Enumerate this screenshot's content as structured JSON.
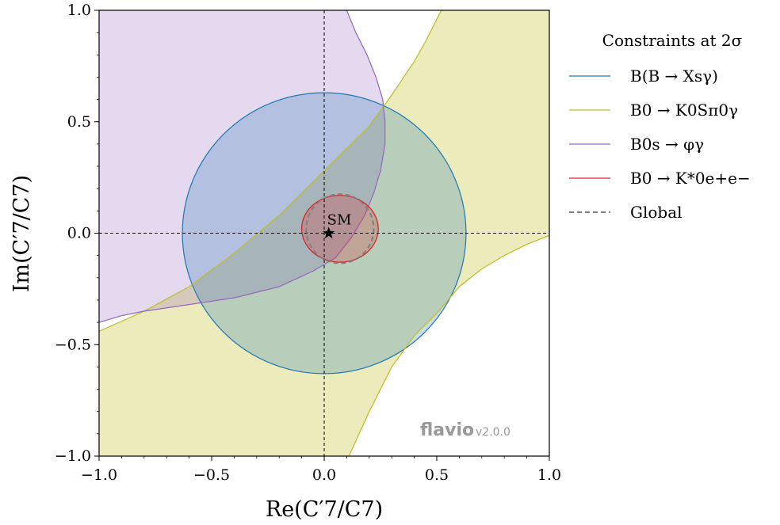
{
  "chart_data": {
    "type": "contour",
    "xlabel": "Re(C′7/C7)",
    "ylabel": "Im(C′7/C7)",
    "xlim": [
      -1.0,
      1.0
    ],
    "ylim": [
      -1.0,
      1.0
    ],
    "xticks": [
      "−1.0",
      "−0.5",
      "0.0",
      "0.5",
      "1.0"
    ],
    "yticks": [
      "−1.0",
      "−0.5",
      "0.0",
      "0.5",
      "1.0"
    ],
    "xtick_values": [
      -1.0,
      -0.5,
      0.0,
      0.5,
      1.0
    ],
    "ytick_values": [
      -1.0,
      -0.5,
      0.0,
      0.5,
      1.0
    ],
    "grid": false,
    "reference_lines": {
      "x": 0.0,
      "y": 0.0,
      "style": "dashed"
    },
    "legend": {
      "title": "Constraints at 2σ",
      "placement": "right-outside-top",
      "entries": [
        {
          "label": "B(B → Xsγ)",
          "color": "#1f77b4",
          "style": "solid"
        },
        {
          "label": "B0 → K0Sπ0γ",
          "color": "#bcbd22",
          "style": "solid"
        },
        {
          "label": "B0s → φγ",
          "color": "#9467bd",
          "style": "solid"
        },
        {
          "label": "B0 → K*0e+e−",
          "color": "#d62728",
          "style": "solid"
        },
        {
          "label": "Global",
          "color": "#7f7f7f",
          "style": "dashed"
        }
      ]
    },
    "regions": {
      "bxsgamma": {
        "shape": "disk",
        "center": [
          0.0,
          0.0
        ],
        "radius": 0.63,
        "color": "#1f77b4"
      },
      "k0spi0gamma_boundary_upper": [
        [
          -1.0,
          -0.44
        ],
        [
          -0.8,
          -0.35
        ],
        [
          -0.6,
          -0.24
        ],
        [
          -0.4,
          -0.09
        ],
        [
          -0.2,
          0.08
        ],
        [
          0.0,
          0.28
        ],
        [
          0.2,
          0.48
        ],
        [
          0.3,
          0.62
        ],
        [
          0.4,
          0.77
        ],
        [
          0.45,
          0.86
        ],
        [
          0.5,
          0.96
        ],
        [
          0.52,
          1.0
        ]
      ],
      "k0spi0gamma_boundary_lower": [
        [
          0.11,
          -1.0
        ],
        [
          0.2,
          -0.8
        ],
        [
          0.3,
          -0.6
        ],
        [
          0.4,
          -0.46
        ],
        [
          0.5,
          -0.36
        ],
        [
          0.6,
          -0.24
        ],
        [
          0.7,
          -0.16
        ],
        [
          0.8,
          -0.1
        ],
        [
          0.9,
          -0.05
        ],
        [
          1.0,
          -0.01
        ]
      ],
      "k0spi0gamma_color": "#bcbd22",
      "phigamma_boundary": [
        [
          -1.0,
          -0.4
        ],
        [
          -0.9,
          -0.37
        ],
        [
          -0.8,
          -0.35
        ],
        [
          -0.6,
          -0.32
        ],
        [
          -0.4,
          -0.29
        ],
        [
          -0.2,
          -0.24
        ],
        [
          -0.05,
          -0.17
        ],
        [
          0.05,
          -0.11
        ],
        [
          0.12,
          -0.02
        ],
        [
          0.18,
          0.08
        ],
        [
          0.22,
          0.18
        ],
        [
          0.25,
          0.28
        ],
        [
          0.27,
          0.4
        ],
        [
          0.27,
          0.5
        ],
        [
          0.26,
          0.6
        ],
        [
          0.23,
          0.7
        ],
        [
          0.19,
          0.8
        ],
        [
          0.14,
          0.9
        ],
        [
          0.1,
          1.0
        ]
      ],
      "phigamma_color": "#9467bd",
      "kstaree": {
        "shape": "ellipse",
        "center": [
          0.07,
          0.02
        ],
        "rx": 0.17,
        "ry": 0.15,
        "color": "#d62728"
      },
      "global": {
        "shape": "ellipse",
        "center": [
          0.07,
          0.02
        ],
        "rx": 0.15,
        "ry": 0.155,
        "color": "#7f7f7f"
      }
    },
    "sm_point": {
      "x": 0.02,
      "y": 0.0,
      "label": "SM",
      "marker": "star"
    }
  },
  "watermark": {
    "brand": "flavio",
    "version": "v2.0.0"
  }
}
